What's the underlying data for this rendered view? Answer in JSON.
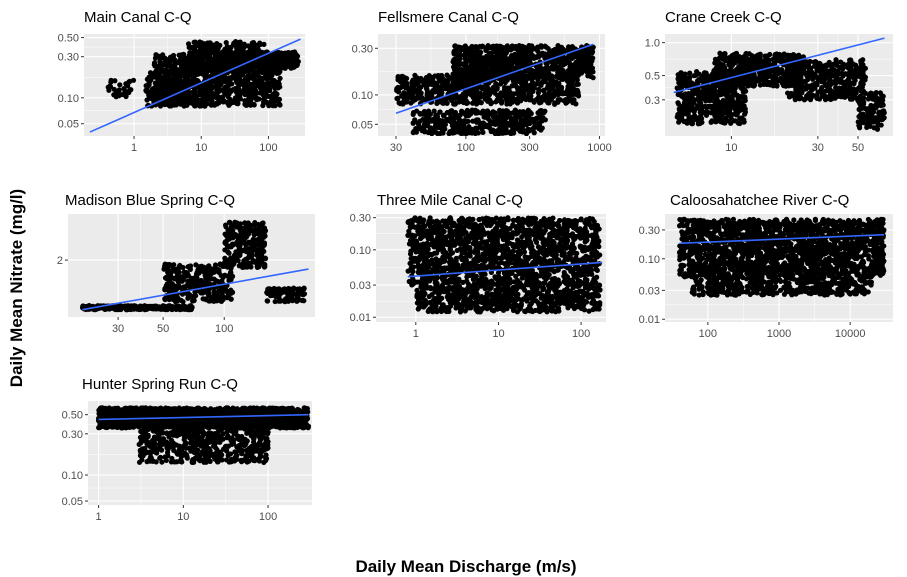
{
  "figure": {
    "ylabel": "Daily Mean Nitrate (mg/l)",
    "xlabel": "Daily Mean Discharge (m/s)",
    "panel_bg": "#ebebeb",
    "grid_color": "#ffffff",
    "point_color": "#000000",
    "fit_color": "#3366ff"
  },
  "chart_data": [
    {
      "type": "scatter",
      "title": "Main Canal C-Q",
      "x_scale": "log",
      "y_scale": "log",
      "xlim": [
        0.18,
        350
      ],
      "ylim": [
        0.036,
        0.55
      ],
      "x_ticks": [
        {
          "v": 1,
          "label": "1"
        },
        {
          "v": 10,
          "label": "10"
        },
        {
          "v": 100,
          "label": "100"
        }
      ],
      "y_ticks": [
        {
          "v": 0.05,
          "label": "0.05"
        },
        {
          "v": 0.1,
          "label": "0.10"
        },
        {
          "v": 0.3,
          "label": "0.30"
        },
        {
          "v": 0.5,
          "label": "0.50"
        }
      ],
      "fit_line": [
        [
          0.22,
          0.04
        ],
        [
          300,
          0.48
        ]
      ],
      "clusters": [
        {
          "x": [
            0.4,
            1.0
          ],
          "y": [
            0.1,
            0.16
          ],
          "n": 30
        },
        {
          "x": [
            1.5,
            9
          ],
          "y": [
            0.08,
            0.2
          ],
          "n": 220
        },
        {
          "x": [
            2,
            150
          ],
          "y": [
            0.08,
            0.32
          ],
          "n": 900
        },
        {
          "x": [
            6,
            90
          ],
          "y": [
            0.2,
            0.45
          ],
          "n": 300
        },
        {
          "x": [
            30,
            280
          ],
          "y": [
            0.22,
            0.34
          ],
          "n": 300
        }
      ]
    },
    {
      "type": "scatter",
      "title": "Fellsmere Canal C-Q",
      "x_scale": "log",
      "y_scale": "log",
      "xlim": [
        22,
        1100
      ],
      "ylim": [
        0.038,
        0.42
      ],
      "x_ticks": [
        {
          "v": 30,
          "label": "30"
        },
        {
          "v": 100,
          "label": "100"
        },
        {
          "v": 300,
          "label": "300"
        },
        {
          "v": 1000,
          "label": "1000"
        }
      ],
      "y_ticks": [
        {
          "v": 0.05,
          "label": "0.05"
        },
        {
          "v": 0.1,
          "label": "0.10"
        },
        {
          "v": 0.3,
          "label": "0.30"
        }
      ],
      "fit_line": [
        [
          30,
          0.065
        ],
        [
          900,
          0.33
        ]
      ],
      "clusters": [
        {
          "x": [
            30,
            700
          ],
          "y": [
            0.08,
            0.16
          ],
          "n": 700
        },
        {
          "x": [
            40,
            400
          ],
          "y": [
            0.04,
            0.07
          ],
          "n": 400
        },
        {
          "x": [
            80,
            900
          ],
          "y": [
            0.15,
            0.32
          ],
          "n": 800
        }
      ]
    },
    {
      "type": "scatter",
      "title": "Crane Creek C-Q",
      "x_scale": "log",
      "y_scale": "log",
      "xlim": [
        4.3,
        78
      ],
      "ylim": [
        0.14,
        1.2
      ],
      "x_ticks": [
        {
          "v": 10,
          "label": "10"
        },
        {
          "v": 30,
          "label": "30"
        },
        {
          "v": 50,
          "label": "50"
        }
      ],
      "y_ticks": [
        {
          "v": 0.3,
          "label": "0.3"
        },
        {
          "v": 0.5,
          "label": "0.5"
        },
        {
          "v": 1.0,
          "label": "1.0"
        }
      ],
      "fit_line": [
        [
          4.8,
          0.35
        ],
        [
          70,
          1.1
        ]
      ],
      "clusters": [
        {
          "x": [
            5,
            12
          ],
          "y": [
            0.18,
            0.55
          ],
          "n": 500
        },
        {
          "x": [
            8,
            25
          ],
          "y": [
            0.4,
            0.8
          ],
          "n": 500
        },
        {
          "x": [
            20,
            55
          ],
          "y": [
            0.3,
            0.7
          ],
          "n": 400
        },
        {
          "x": [
            50,
            70
          ],
          "y": [
            0.16,
            0.35
          ],
          "n": 120
        }
      ]
    },
    {
      "type": "scatter",
      "title": "Madison Blue Spring C-Q",
      "x_scale": "log",
      "y_scale": "log",
      "xlim": [
        17,
        280
      ],
      "ylim": [
        1.35,
        2.75
      ],
      "x_ticks": [
        {
          "v": 30,
          "label": "30"
        },
        {
          "v": 50,
          "label": "50"
        },
        {
          "v": 100,
          "label": "100"
        }
      ],
      "y_ticks": [
        {
          "v": 2,
          "label": "2"
        }
      ],
      "fit_line": [
        [
          20,
          1.42
        ],
        [
          260,
          1.88
        ]
      ],
      "clusters": [
        {
          "x": [
            20,
            70
          ],
          "y": [
            1.42,
            1.46
          ],
          "n": 300
        },
        {
          "x": [
            50,
            110
          ],
          "y": [
            1.5,
            1.95
          ],
          "n": 300
        },
        {
          "x": [
            100,
            160
          ],
          "y": [
            1.9,
            2.6
          ],
          "n": 250
        },
        {
          "x": [
            160,
            250
          ],
          "y": [
            1.5,
            1.65
          ],
          "n": 100
        }
      ]
    },
    {
      "type": "scatter",
      "title": "Three Mile Canal C-Q",
      "x_scale": "log",
      "y_scale": "log",
      "xlim": [
        0.33,
        200
      ],
      "ylim": [
        0.0085,
        0.34
      ],
      "x_ticks": [
        {
          "v": 1,
          "label": "1"
        },
        {
          "v": 10,
          "label": "10"
        },
        {
          "v": 100,
          "label": "100"
        }
      ],
      "y_ticks": [
        {
          "v": 0.01,
          "label": "0.01"
        },
        {
          "v": 0.03,
          "label": "0.03"
        },
        {
          "v": 0.1,
          "label": "0.10"
        },
        {
          "v": 0.3,
          "label": "0.30"
        }
      ],
      "fit_line": [
        [
          0.8,
          0.04
        ],
        [
          180,
          0.065
        ]
      ],
      "clusters": [
        {
          "x": [
            0.8,
            170
          ],
          "y": [
            0.03,
            0.3
          ],
          "n": 1500
        },
        {
          "x": [
            1,
            170
          ],
          "y": [
            0.012,
            0.03
          ],
          "n": 600
        }
      ]
    },
    {
      "type": "scatter",
      "title": "Caloosahatchee River C-Q",
      "x_scale": "log",
      "y_scale": "log",
      "xlim": [
        25,
        40000
      ],
      "ylim": [
        0.009,
        0.55
      ],
      "x_ticks": [
        {
          "v": 100,
          "label": "100"
        },
        {
          "v": 1000,
          "label": "1000"
        },
        {
          "v": 10000,
          "label": "10000"
        }
      ],
      "y_ticks": [
        {
          "v": 0.01,
          "label": "0.01"
        },
        {
          "v": 0.03,
          "label": "0.03"
        },
        {
          "v": 0.1,
          "label": "0.10"
        },
        {
          "v": 0.3,
          "label": "0.30"
        }
      ],
      "fit_line": [
        [
          40,
          0.18
        ],
        [
          30000,
          0.25
        ]
      ],
      "clusters": [
        {
          "x": [
            40,
            30000
          ],
          "y": [
            0.05,
            0.45
          ],
          "n": 1800
        },
        {
          "x": [
            60,
            20000
          ],
          "y": [
            0.025,
            0.05
          ],
          "n": 400
        }
      ]
    },
    {
      "type": "scatter",
      "title": "Hunter Spring Run C-Q",
      "x_scale": "log",
      "y_scale": "log",
      "xlim": [
        0.75,
        330
      ],
      "ylim": [
        0.045,
        0.72
      ],
      "x_ticks": [
        {
          "v": 1,
          "label": "1"
        },
        {
          "v": 10,
          "label": "10"
        },
        {
          "v": 100,
          "label": "100"
        }
      ],
      "y_ticks": [
        {
          "v": 0.05,
          "label": "0.05"
        },
        {
          "v": 0.1,
          "label": "0.10"
        },
        {
          "v": 0.3,
          "label": "0.30"
        },
        {
          "v": 0.5,
          "label": "0.50"
        }
      ],
      "fit_line": [
        [
          1,
          0.44
        ],
        [
          300,
          0.5
        ]
      ],
      "clusters": [
        {
          "x": [
            1,
            300
          ],
          "y": [
            0.35,
            0.6
          ],
          "n": 1600
        },
        {
          "x": [
            3,
            100
          ],
          "y": [
            0.14,
            0.35
          ],
          "n": 500
        }
      ]
    }
  ]
}
